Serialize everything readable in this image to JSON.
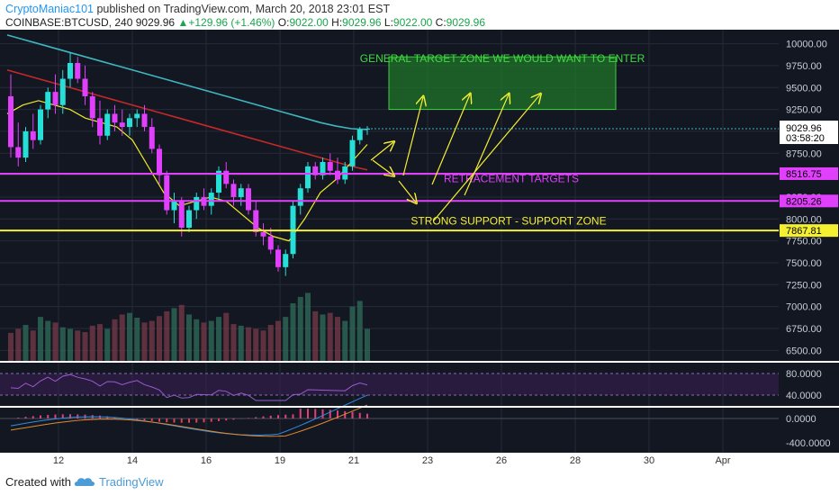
{
  "header": {
    "author": "CryptoManiac101",
    "published": " published on TradingView.com, March 20, 2018 23:01 EST",
    "symbol": "COINBASE:BTCUSD, 240",
    "last": "9029.96",
    "change": "+129.96 (+1.46%)",
    "o_label": "O:",
    "o": "9022.00",
    "h_label": "H:",
    "h": "9029.96",
    "l_label": "L:",
    "l": "9022.00",
    "c_label": "C:",
    "c": "9029.96"
  },
  "footer": {
    "created_with": "Created with",
    "brand": "TradingView"
  },
  "colors": {
    "background": "#131722",
    "bull": "#26e0d8",
    "bear": "#e040fb",
    "ma_slow": "#3fb6c0",
    "ma_mid": "#c62828",
    "ma_fast": "#f2ea2b",
    "support": "#f5ef32",
    "retracement": "#e040fb",
    "target_zone": "#2ea82e",
    "price_tag": "#1d2230"
  },
  "chart_data": {
    "type": "candlestick",
    "symbol": "COINBASE:BTCUSD",
    "timeframe": "240",
    "x_ticks": [
      "12",
      "14",
      "16",
      "19",
      "21",
      "23",
      "26",
      "28",
      "30",
      "Apr"
    ],
    "price_ticks": [
      10000,
      9750,
      9500,
      9250,
      9000,
      8750,
      8500,
      8250,
      8000,
      7750,
      7500,
      7250,
      7000,
      6750,
      6500
    ],
    "price_range": [
      6380,
      10160
    ],
    "current_price": 9029.96,
    "countdown": "03:58:20",
    "candles": [
      [
        9400,
        9650,
        8700,
        8820
      ],
      [
        8820,
        9100,
        8600,
        8700
      ],
      [
        8700,
        9050,
        8650,
        9000
      ],
      [
        9000,
        9200,
        8800,
        8900
      ],
      [
        8900,
        9300,
        8850,
        9250
      ],
      [
        9250,
        9500,
        9150,
        9450
      ],
      [
        9450,
        9650,
        9200,
        9300
      ],
      [
        9300,
        9700,
        9200,
        9600
      ],
      [
        9600,
        9900,
        9500,
        9780
      ],
      [
        9780,
        9850,
        9550,
        9600
      ],
      [
        9600,
        9750,
        9300,
        9400
      ],
      [
        9400,
        9450,
        9050,
        9150
      ],
      [
        9150,
        9350,
        8850,
        8950
      ],
      [
        8950,
        9250,
        8900,
        9200
      ],
      [
        9200,
        9300,
        9000,
        9100
      ],
      [
        9100,
        9250,
        8950,
        9050
      ],
      [
        9050,
        9200,
        8950,
        9150
      ],
      [
        9150,
        9250,
        9050,
        9200
      ],
      [
        9200,
        9300,
        9000,
        9050
      ],
      [
        9050,
        9150,
        8750,
        8800
      ],
      [
        8800,
        8850,
        8400,
        8500
      ],
      [
        8500,
        8550,
        8050,
        8100
      ],
      [
        8100,
        8300,
        7950,
        8200
      ],
      [
        8200,
        8250,
        7800,
        7900
      ],
      [
        7900,
        8150,
        7850,
        8100
      ],
      [
        8100,
        8300,
        8000,
        8250
      ],
      [
        8250,
        8350,
        8100,
        8150
      ],
      [
        8150,
        8350,
        8050,
        8300
      ],
      [
        8300,
        8600,
        8200,
        8550
      ],
      [
        8550,
        8650,
        8350,
        8400
      ],
      [
        8400,
        8450,
        8150,
        8250
      ],
      [
        8250,
        8400,
        8150,
        8350
      ],
      [
        8350,
        8400,
        8050,
        8100
      ],
      [
        8100,
        8200,
        7800,
        7850
      ],
      [
        7850,
        7950,
        7700,
        7800
      ],
      [
        7800,
        7900,
        7600,
        7650
      ],
      [
        7650,
        7700,
        7400,
        7450
      ],
      [
        7450,
        7650,
        7350,
        7600
      ],
      [
        7600,
        8200,
        7550,
        8150
      ],
      [
        8150,
        8400,
        8050,
        8350
      ],
      [
        8350,
        8650,
        8300,
        8600
      ],
      [
        8600,
        8650,
        8450,
        8500
      ],
      [
        8500,
        8700,
        8450,
        8650
      ],
      [
        8650,
        8750,
        8500,
        8550
      ],
      [
        8550,
        8700,
        8400,
        8450
      ],
      [
        8450,
        8650,
        8400,
        8600
      ],
      [
        8600,
        8950,
        8550,
        8900
      ],
      [
        8900,
        9050,
        8850,
        9020
      ],
      [
        9020,
        9060,
        8960,
        9030
      ]
    ],
    "moving_averages": [
      {
        "values": [
          10100,
          10050,
          10000,
          9950,
          9900,
          9850,
          9800,
          9750,
          9700,
          9650,
          9600,
          9550,
          9500,
          9450,
          9400,
          9350,
          9300,
          9250,
          9200,
          9150,
          9100,
          9060,
          9030,
          9020
        ]
      },
      {
        "values": [
          9700,
          9650,
          9600,
          9550,
          9500,
          9450,
          9400,
          9350,
          9300,
          9250,
          9200,
          9150,
          9100,
          9050,
          9000,
          8950,
          8900,
          8850,
          8800,
          8750,
          8700,
          8650,
          8600,
          8560
        ]
      },
      {
        "values": [
          9200,
          9300,
          9350,
          9300,
          9250,
          9150,
          9100,
          9050,
          8900,
          8600,
          8300,
          8150,
          8200,
          8250,
          8200,
          8050,
          7900,
          7800,
          7750,
          8000,
          8300,
          8450,
          8650,
          8850
        ]
      }
    ],
    "levels": [
      {
        "price": 8516.75,
        "label": "8516.75",
        "color": "#e040fb"
      },
      {
        "price": 8205.26,
        "label": "8205.26",
        "color": "#e040fb"
      },
      {
        "price": 7867.81,
        "label": "7867.81",
        "color": "#f5ef32"
      }
    ],
    "target_zone": {
      "from_price": 9250,
      "to_price": 9850
    },
    "annotations": {
      "target": "GENERAL TARGET ZONE WE WOULD WANT TO ENTER",
      "retracement": "RETRACEMENT TARGETS",
      "support": "STRONG SUPPORT - SUPPORT ZONE"
    },
    "volume": [
      35,
      40,
      45,
      38,
      55,
      50,
      48,
      42,
      40,
      38,
      36,
      44,
      46,
      40,
      52,
      58,
      60,
      54,
      48,
      50,
      56,
      62,
      66,
      70,
      58,
      52,
      48,
      50,
      55,
      60,
      46,
      44,
      42,
      40,
      38,
      45,
      50,
      55,
      72,
      80,
      85,
      62,
      58,
      60,
      55,
      50,
      68,
      75,
      40
    ],
    "rsi_ticks": [
      80,
      40
    ],
    "macd_ticks": [
      0,
      -400
    ]
  }
}
